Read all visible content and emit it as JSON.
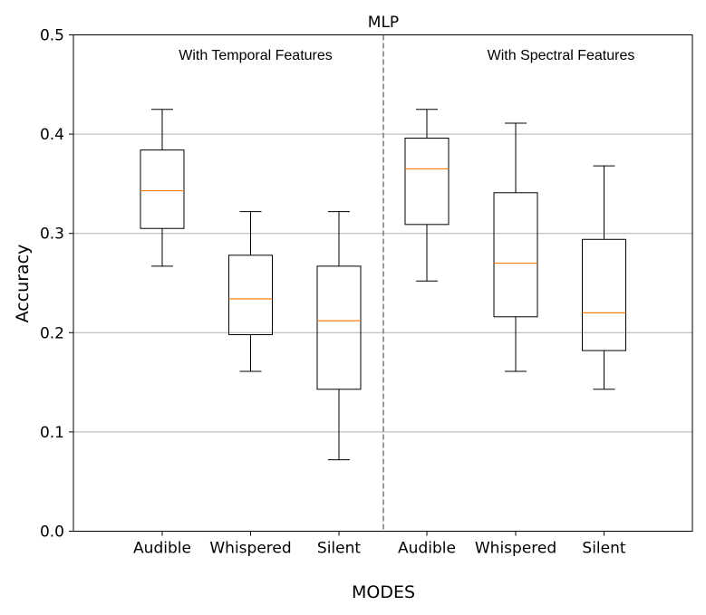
{
  "chart_data": {
    "type": "box",
    "title": "MLP",
    "xlabel": "MODES",
    "ylabel": "Accuracy",
    "ylim": [
      0.0,
      0.5
    ],
    "yticks": [
      "0.0",
      "0.1",
      "0.2",
      "0.3",
      "0.4",
      "0.5"
    ],
    "grid": "horizontal",
    "annotations": [
      {
        "text": "With Temporal Features",
        "group": 0
      },
      {
        "text": "With Spectral Features",
        "group": 1
      }
    ],
    "boxes": [
      {
        "category": "Audible",
        "group": 0,
        "whisker_low": 0.267,
        "q1": 0.305,
        "median": 0.343,
        "q3": 0.384,
        "whisker_high": 0.425
      },
      {
        "category": "Whispered",
        "group": 0,
        "whisker_low": 0.161,
        "q1": 0.198,
        "median": 0.234,
        "q3": 0.278,
        "whisker_high": 0.322
      },
      {
        "category": "Silent",
        "group": 0,
        "whisker_low": 0.072,
        "q1": 0.143,
        "median": 0.212,
        "q3": 0.267,
        "whisker_high": 0.322
      },
      {
        "category": "Audible",
        "group": 1,
        "whisker_low": 0.252,
        "q1": 0.309,
        "median": 0.365,
        "q3": 0.396,
        "whisker_high": 0.425
      },
      {
        "category": "Whispered",
        "group": 1,
        "whisker_low": 0.161,
        "q1": 0.216,
        "median": 0.27,
        "q3": 0.341,
        "whisker_high": 0.411
      },
      {
        "category": "Silent",
        "group": 1,
        "whisker_low": 0.143,
        "q1": 0.182,
        "median": 0.22,
        "q3": 0.294,
        "whisker_high": 0.368
      }
    ],
    "colors": {
      "box": "#000000",
      "median": "#ff7f0e",
      "grid": "#b0b0b0",
      "divider": "#808080"
    }
  }
}
